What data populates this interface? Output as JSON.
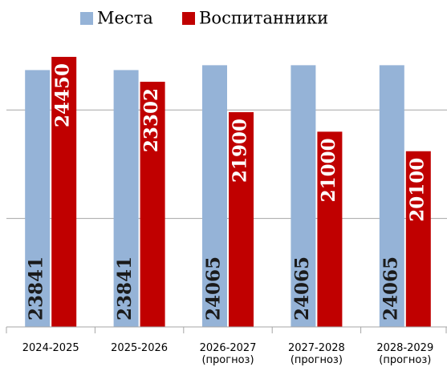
{
  "chart_data": {
    "type": "bar",
    "categories": [
      "2024-2025",
      "2025-2026",
      "2026-2027 (прогноз)",
      "2027-2028 (прогноз)",
      "2028-2029 (прогноз)"
    ],
    "series": [
      {
        "name": "Места",
        "color": "#95b3d7",
        "values": [
          23841,
          23841,
          24065,
          24065,
          24065
        ]
      },
      {
        "name": "Воспитанники",
        "color": "#c00000",
        "values": [
          24450,
          23302,
          21900,
          21000,
          20100
        ]
      }
    ],
    "ylim": [
      12000,
      26000
    ],
    "yticks": [
      12000,
      17000,
      22000
    ],
    "grid": true,
    "legend": "top"
  }
}
